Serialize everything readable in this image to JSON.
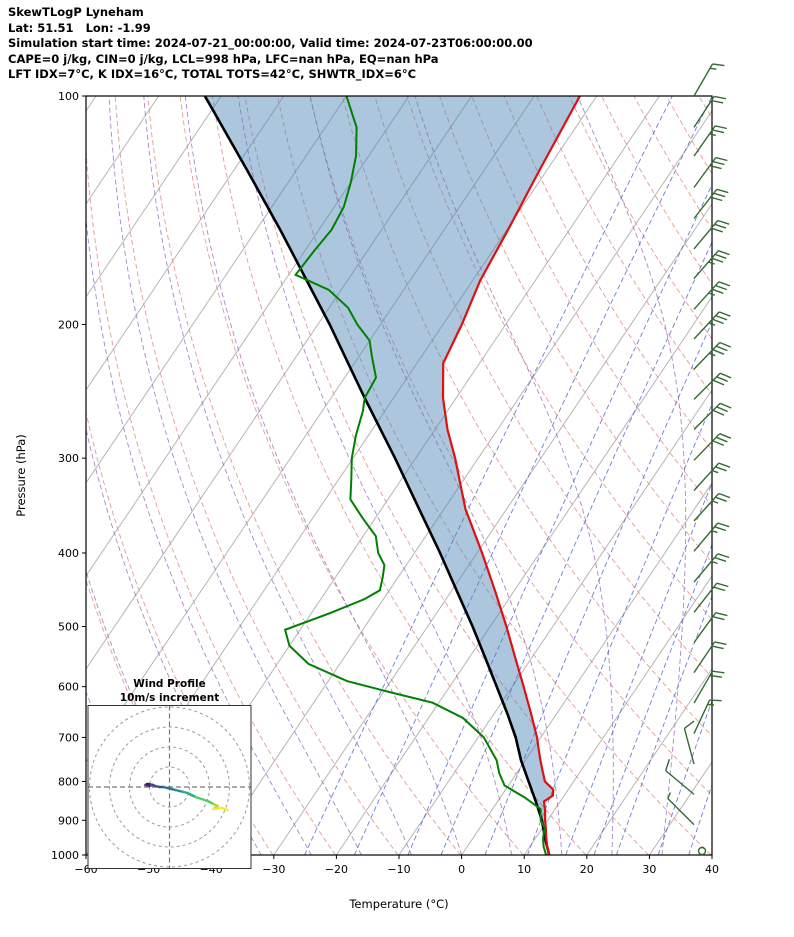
{
  "header": {
    "title": "SkewTLogP Lyneham",
    "location_line": "Lat: 51.51   Lon: -1.99",
    "time_line": "Simulation start time: 2024-07-21_00:00:00, Valid time: 2024-07-23T06:00:00.00",
    "indices_line1": "CAPE=0 j/kg, CIN=0 j/kg, LCL=998 hPa, LFC=nan hPa, EQ=nan hPa",
    "indices_line2": "LFT IDX=7°C, K IDX=16°C, TOTAL TOTS=42°C, SHWTR_IDX=6°C"
  },
  "axes": {
    "x_label": "Temperature (°C)",
    "y_label": "Pressure (hPa)",
    "x_ticks": [
      -60,
      -50,
      -40,
      -30,
      -20,
      -10,
      0,
      10,
      20,
      30,
      40
    ],
    "y_ticks": [
      100,
      200,
      300,
      400,
      500,
      600,
      700,
      800,
      900,
      1000
    ]
  },
  "colors": {
    "temperature": "#dd1111",
    "dewpoint": "#008000",
    "parcel": "#000000",
    "fill": "#4682b4",
    "fill_opacity": 0.45,
    "isotherm": "#b5b5b5",
    "dry_adiabat": "#e08888",
    "moist_adiabat": "#9b72c0",
    "mixing_ratio": "#4a5ccc",
    "barb": "#336b33",
    "hodo_ring": "#999999",
    "hodo_cross": "#777777",
    "viridis": [
      "#440154",
      "#472d7b",
      "#3b528b",
      "#2c728e",
      "#21918c",
      "#28ae80",
      "#5ec962",
      "#addc30",
      "#fde725"
    ]
  },
  "chart_data": {
    "type": "skewt-logp",
    "layout": {
      "t_min": -60,
      "t_max": 40,
      "p_top": 100,
      "p_bottom": 1000,
      "skew": 0.673,
      "isotherm_start": -140,
      "isotherm_end": 40,
      "isotherm_step": 10
    },
    "dry_adiabats_theta_k": [
      213,
      223,
      233,
      243,
      253,
      263,
      273,
      283,
      293,
      303,
      313,
      323,
      333,
      343,
      353,
      363,
      373,
      383,
      393,
      403,
      413,
      423,
      433,
      443,
      453
    ],
    "moist_adiabats_thetaw_c": [
      -48,
      -40,
      -32,
      -24,
      -16,
      -8,
      0,
      8,
      16,
      24,
      32
    ],
    "mixing_ratios_g_kg": [
      0.5,
      1,
      2,
      3,
      5,
      8,
      12,
      16,
      20,
      30,
      40
    ],
    "temperature_profile": [
      [
        1000,
        14.0
      ],
      [
        975,
        12.8
      ],
      [
        950,
        11.7
      ],
      [
        925,
        10.7
      ],
      [
        900,
        9.6
      ],
      [
        875,
        8.6
      ],
      [
        850,
        7.4
      ],
      [
        835,
        8.2
      ],
      [
        820,
        7.6
      ],
      [
        800,
        5.4
      ],
      [
        775,
        3.9
      ],
      [
        750,
        2.4
      ],
      [
        725,
        0.9
      ],
      [
        700,
        -0.6
      ],
      [
        650,
        -4.2
      ],
      [
        600,
        -8.2
      ],
      [
        550,
        -12.6
      ],
      [
        500,
        -17.4
      ],
      [
        450,
        -22.9
      ],
      [
        400,
        -29.2
      ],
      [
        350,
        -36.6
      ],
      [
        300,
        -43.7
      ],
      [
        275,
        -48.0
      ],
      [
        250,
        -52.1
      ],
      [
        225,
        -55.8
      ],
      [
        200,
        -57.0
      ],
      [
        175,
        -58.8
      ],
      [
        150,
        -59.8
      ],
      [
        125,
        -61.2
      ],
      [
        100,
        -62.7
      ]
    ],
    "dewpoint_profile": [
      [
        1000,
        13.5
      ],
      [
        975,
        12.2
      ],
      [
        950,
        11.2
      ],
      [
        920,
        10.3
      ],
      [
        900,
        8.9
      ],
      [
        870,
        7.7
      ],
      [
        840,
        3.9
      ],
      [
        810,
        -0.6
      ],
      [
        780,
        -2.8
      ],
      [
        750,
        -4.6
      ],
      [
        700,
        -9.1
      ],
      [
        660,
        -14.5
      ],
      [
        630,
        -21.0
      ],
      [
        610,
        -29.0
      ],
      [
        590,
        -37.0
      ],
      [
        560,
        -45.0
      ],
      [
        530,
        -50.0
      ],
      [
        505,
        -52.4
      ],
      [
        480,
        -47.0
      ],
      [
        460,
        -43.0
      ],
      [
        448,
        -41.5
      ],
      [
        430,
        -42.5
      ],
      [
        415,
        -43.5
      ],
      [
        400,
        -45.8
      ],
      [
        380,
        -48.0
      ],
      [
        360,
        -52.0
      ],
      [
        340,
        -56.0
      ],
      [
        320,
        -58.0
      ],
      [
        300,
        -60.2
      ],
      [
        280,
        -62.0
      ],
      [
        260,
        -63.5
      ],
      [
        250,
        -64.6
      ],
      [
        235,
        -65.0
      ],
      [
        220,
        -68.0
      ],
      [
        210,
        -70.0
      ],
      [
        200,
        -73.7
      ],
      [
        190,
        -77.0
      ],
      [
        180,
        -82.0
      ],
      [
        172,
        -88.9
      ],
      [
        160,
        -88.5
      ],
      [
        150,
        -88.0
      ],
      [
        140,
        -88.5
      ],
      [
        130,
        -90.0
      ],
      [
        120,
        -92.0
      ],
      [
        110,
        -95.0
      ],
      [
        100,
        -100.0
      ]
    ],
    "parcel_profile": [
      [
        1000,
        14.0
      ],
      [
        950,
        11.5
      ],
      [
        900,
        9.1
      ],
      [
        850,
        6.1
      ],
      [
        800,
        2.8
      ],
      [
        750,
        -0.7
      ],
      [
        700,
        -4.0
      ],
      [
        650,
        -8.0
      ],
      [
        600,
        -12.5
      ],
      [
        550,
        -17.4
      ],
      [
        500,
        -22.8
      ],
      [
        450,
        -29.0
      ],
      [
        400,
        -35.9
      ],
      [
        350,
        -44.0
      ],
      [
        300,
        -53.3
      ],
      [
        250,
        -64.6
      ],
      [
        200,
        -78.1
      ],
      [
        150,
        -96.2
      ],
      [
        125,
        -108.0
      ],
      [
        100,
        -122.6
      ]
    ],
    "wind_barbs": [
      {
        "p": 1000,
        "ms": 0,
        "deg": 0
      },
      {
        "p": 912,
        "ms": 3,
        "deg": 315
      },
      {
        "p": 832,
        "ms": 5,
        "deg": 310
      },
      {
        "p": 759,
        "ms": 6,
        "deg": 345
      },
      {
        "p": 692,
        "ms": 8,
        "deg": 25
      },
      {
        "p": 631,
        "ms": 9,
        "deg": 30
      },
      {
        "p": 575,
        "ms": 10,
        "deg": 34
      },
      {
        "p": 525,
        "ms": 10,
        "deg": 36
      },
      {
        "p": 479,
        "ms": 11,
        "deg": 38
      },
      {
        "p": 437,
        "ms": 12,
        "deg": 40
      },
      {
        "p": 398,
        "ms": 12,
        "deg": 40
      },
      {
        "p": 363,
        "ms": 13,
        "deg": 42
      },
      {
        "p": 331,
        "ms": 13,
        "deg": 42
      },
      {
        "p": 302,
        "ms": 14,
        "deg": 44
      },
      {
        "p": 275,
        "ms": 15,
        "deg": 45
      },
      {
        "p": 251,
        "ms": 16,
        "deg": 45
      },
      {
        "p": 229,
        "ms": 17,
        "deg": 44
      },
      {
        "p": 209,
        "ms": 18,
        "deg": 43
      },
      {
        "p": 191,
        "ms": 18,
        "deg": 42
      },
      {
        "p": 174,
        "ms": 17,
        "deg": 41
      },
      {
        "p": 159,
        "ms": 16,
        "deg": 40
      },
      {
        "p": 145,
        "ms": 15,
        "deg": 38
      },
      {
        "p": 132,
        "ms": 14,
        "deg": 36
      },
      {
        "p": 120,
        "ms": 12,
        "deg": 35
      },
      {
        "p": 110,
        "ms": 10,
        "deg": 33
      },
      {
        "p": 100,
        "ms": 8,
        "deg": 30
      }
    ],
    "hodograph": {
      "title": "Wind Profile",
      "subtitle": "10m/s increment",
      "ring_increment_ms": 10,
      "rings_ms": [
        10,
        20,
        30,
        40
      ],
      "trace_uv_ms": [
        [
          -8,
          1
        ],
        [
          -11,
          1.5
        ],
        [
          -12,
          1
        ],
        [
          -10,
          0.5
        ],
        [
          -9,
          1
        ],
        [
          -7,
          0.5
        ],
        [
          -5,
          0
        ],
        [
          -3,
          0
        ],
        [
          -1,
          -0.5
        ],
        [
          1,
          -1
        ],
        [
          3,
          -1.5
        ],
        [
          5,
          -2
        ],
        [
          7,
          -2.5
        ],
        [
          9,
          -3
        ],
        [
          11,
          -4
        ],
        [
          13,
          -5
        ],
        [
          16,
          -6
        ],
        [
          19,
          -7
        ],
        [
          22,
          -8.5
        ],
        [
          24,
          -9.5
        ],
        [
          22,
          -11
        ],
        [
          26,
          -10.5
        ],
        [
          29,
          -11.5
        ]
      ]
    }
  }
}
